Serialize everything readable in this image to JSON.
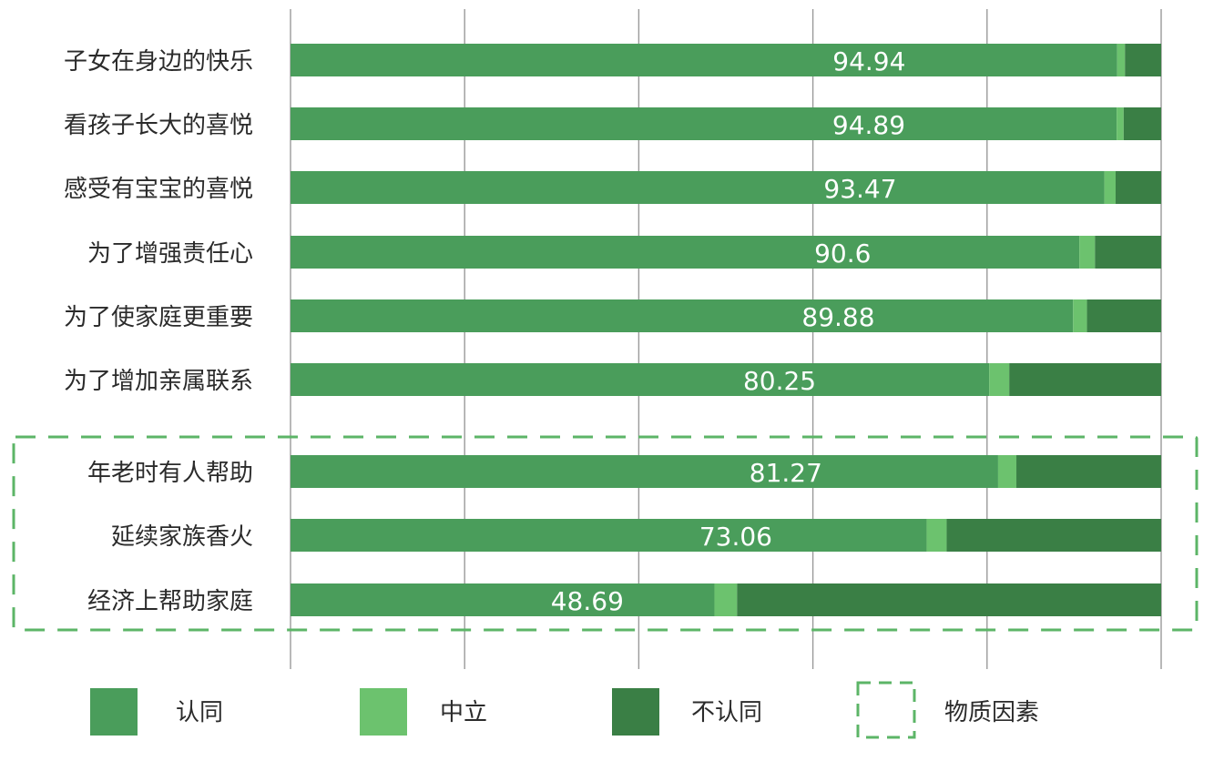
{
  "chart_data": {
    "type": "bar",
    "orientation": "horizontal",
    "stacked": true,
    "categories": [
      "子女在身边的快乐",
      "看孩子长大的喜悦",
      "感受有宝宝的喜悦",
      "为了增强责任心",
      "为了使家庭更重要",
      "为了增加亲属联系",
      "年老时有人帮助",
      "延续家族香火",
      "经济上帮助家庭"
    ],
    "series": [
      {
        "name": "认同",
        "color": "#4a9d5b",
        "values": [
          94.94,
          94.89,
          93.47,
          90.6,
          89.88,
          80.25,
          81.27,
          73.06,
          48.69
        ]
      },
      {
        "name": "中立",
        "color": "#6cc26e",
        "values": [
          0.9,
          0.8,
          1.3,
          1.8,
          1.6,
          2.3,
          2.1,
          2.3,
          2.6
        ]
      },
      {
        "name": "不认同",
        "color": "#3a7f45",
        "values": [
          4.16,
          4.31,
          5.23,
          7.6,
          8.52,
          17.45,
          16.63,
          24.64,
          48.71
        ]
      }
    ],
    "data_labels": [
      "94.94",
      "94.89",
      "93.47",
      "90.6",
      "89.88",
      "80.25",
      "81.27",
      "73.06",
      "48.69"
    ],
    "xlim": [
      0,
      100
    ],
    "grid": true,
    "legend_position": "bottom",
    "highlight_box": {
      "name": "物质因素",
      "categories": [
        "年老时有人帮助",
        "延续家族香火",
        "经济上帮助家庭"
      ],
      "style": "dashed",
      "color": "#5cb567"
    }
  }
}
